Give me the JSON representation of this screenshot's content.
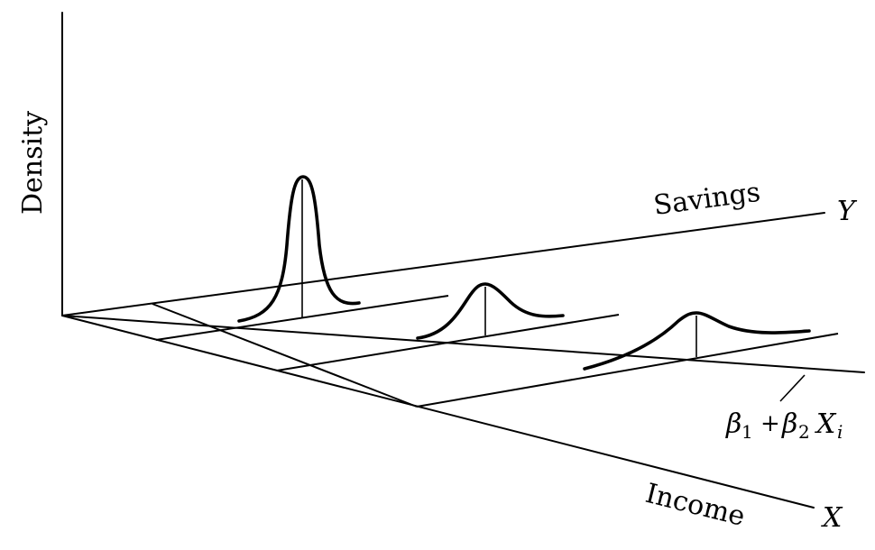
{
  "diagram": {
    "axes": {
      "vertical_label": "Density",
      "horizontal_label": "Savings",
      "horizontal_symbol": "Y",
      "depth_label": "Income",
      "depth_symbol": "X"
    },
    "regression_line": {
      "beta1": "β",
      "sub1": "1",
      "plus": "+",
      "beta2": "β",
      "sub2": "2",
      "x": "X",
      "sub_i": "i"
    },
    "distributions": [
      {
        "name": "income-level-1",
        "relative_spread": "narrow"
      },
      {
        "name": "income-level-2",
        "relative_spread": "medium"
      },
      {
        "name": "income-level-3",
        "relative_spread": "wide"
      }
    ]
  }
}
